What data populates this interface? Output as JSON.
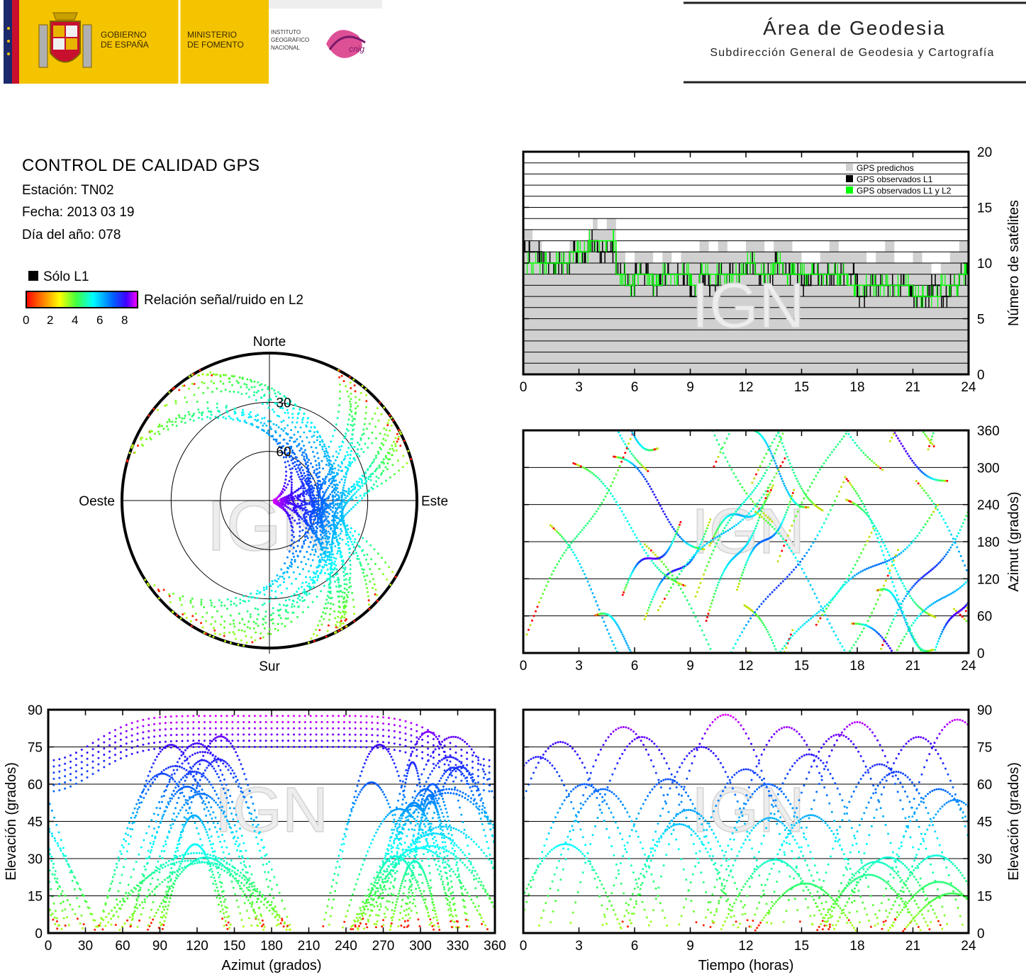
{
  "header": {
    "gobierno": [
      "GOBIERNO",
      "DE ESPAÑA"
    ],
    "ministerio": [
      "MINISTERIO",
      "DE FOMENTO"
    ],
    "instituto": [
      "INSTITUTO",
      "GEOGRÁFICO",
      "NACIONAL"
    ],
    "cnig_logo": "cnig",
    "area_title": "Área de Geodesia",
    "area_subtitle": "Subdirección General de Geodesia y Cartografía",
    "colors": {
      "yellow": "#f4c400",
      "flag_red": "#c8102e",
      "navy": "#1a2a6c",
      "cnig_magenta": "#d6247a"
    }
  },
  "report": {
    "title": "CONTROL DE CALIDAD GPS",
    "station": "Estación: TN02",
    "date": "Fecha: 2013 03 19",
    "doy": "Día del año: 078"
  },
  "legend": {
    "solo_l1": "Sólo L1",
    "snr_label": "Relación señal/ruido en L2",
    "scale_ticks": [
      "0",
      "2",
      "4",
      "6",
      "8"
    ],
    "colormap": [
      "#000000",
      "#ff0000",
      "#ff8000",
      "#ffff00",
      "#80ff00",
      "#00ff80",
      "#00ffff",
      "#0080ff",
      "#0000ff",
      "#8000ff",
      "#ff00ff"
    ]
  },
  "watermark": "IGN",
  "chart_data": [
    {
      "type": "area",
      "name": "satellites",
      "ylabel": "Número de satélites",
      "x_ticks": [
        "0",
        "3",
        "6",
        "9",
        "12",
        "15",
        "18",
        "21",
        "24"
      ],
      "y_ticks": [
        "0",
        "5",
        "10",
        "15",
        "20"
      ],
      "xlim": [
        0,
        24
      ],
      "ylim": [
        0,
        20
      ],
      "grid": true,
      "legend_position": "top-right",
      "series": [
        {
          "name": "GPS predichos",
          "color": "#d0d0d0",
          "x": [
            0,
            0.5,
            1,
            1.5,
            2,
            2.5,
            3,
            3.5,
            3.75,
            4,
            4.25,
            4.5,
            5,
            5.5,
            6,
            6.5,
            7,
            7.5,
            8,
            8.5,
            9,
            9.5,
            10,
            10.5,
            11,
            11.5,
            12,
            12.5,
            13,
            13.5,
            14,
            14.5,
            15,
            15.5,
            16,
            16.5,
            17,
            17.5,
            18,
            18.5,
            19,
            19.5,
            20,
            20.5,
            21,
            21.5,
            22,
            22.5,
            23,
            23.5,
            24
          ],
          "y": [
            13,
            12,
            11,
            11,
            11,
            12,
            12,
            13,
            14,
            13,
            13,
            14,
            11,
            10,
            11,
            11,
            10,
            11,
            10,
            11,
            11,
            12,
            11,
            12,
            11,
            11,
            12,
            12,
            11,
            12,
            12,
            11,
            10,
            10,
            11,
            12,
            11,
            11,
            11,
            10,
            11,
            12,
            10,
            10,
            11,
            10,
            9,
            10,
            11,
            12,
            13
          ]
        },
        {
          "name": "GPS observados L1",
          "color": "#000000",
          "x": [
            0,
            0.5,
            1,
            1.5,
            2,
            2.5,
            3,
            3.5,
            4,
            4.5,
            5,
            5.5,
            6,
            6.5,
            7,
            7.5,
            8,
            8.5,
            9,
            9.5,
            10,
            10.5,
            11,
            11.5,
            12,
            12.5,
            13,
            13.5,
            14,
            14.5,
            15,
            15.5,
            16,
            16.5,
            17,
            17.5,
            18,
            18.5,
            19,
            19.5,
            20,
            20.5,
            21,
            21.5,
            22,
            22.5,
            23,
            23.5,
            24
          ],
          "y": [
            11,
            11,
            10,
            10,
            10,
            11,
            11,
            12,
            11,
            11,
            9,
            8,
            9,
            9,
            8,
            9,
            9,
            9,
            7,
            9,
            8,
            9,
            9,
            9,
            10,
            9,
            9,
            10,
            9,
            9,
            8,
            9,
            9,
            9,
            9,
            9,
            7,
            8,
            8,
            8,
            8,
            8,
            7,
            7,
            8,
            7,
            8,
            9,
            9
          ]
        },
        {
          "name": "GPS observados L1 y L2",
          "color": "#00ff00",
          "x": [
            0,
            0.5,
            1,
            1.5,
            2,
            2.5,
            3,
            3.5,
            4,
            4.5,
            5,
            5.5,
            6,
            6.5,
            7,
            7.5,
            8,
            8.5,
            9,
            9.5,
            10,
            10.5,
            11,
            11.5,
            12,
            12.5,
            13,
            13.5,
            14,
            14.5,
            15,
            15.5,
            16,
            16.5,
            17,
            17.5,
            18,
            18.5,
            19,
            19.5,
            20,
            20.5,
            21,
            21.5,
            22,
            22.5,
            23,
            23.5,
            24
          ],
          "y": [
            10,
            10,
            10,
            10,
            10,
            11,
            11,
            12,
            12,
            12,
            9,
            8,
            9,
            9,
            8,
            9,
            9,
            9,
            8,
            9,
            9,
            9,
            9,
            9,
            10,
            9,
            9,
            10,
            9,
            9,
            9,
            9,
            9,
            9,
            9,
            8,
            8,
            8,
            8,
            8,
            8,
            8,
            7,
            7,
            7,
            8,
            8,
            9,
            9
          ]
        }
      ]
    },
    {
      "type": "scatter",
      "name": "azimuth_time",
      "ylabel": "Azimut (grados)",
      "x_ticks": [
        "0",
        "3",
        "6",
        "9",
        "12",
        "15",
        "18",
        "21",
        "24"
      ],
      "y_ticks": [
        "0",
        "60",
        "120",
        "180",
        "240",
        "300",
        "360"
      ],
      "xlim": [
        0,
        24
      ],
      "ylim": [
        0,
        360
      ],
      "grid": true
    },
    {
      "type": "scatter",
      "name": "polar_skyplot",
      "labels": {
        "north": "Norte",
        "south": "Sur",
        "west": "Oeste",
        "east": "Este"
      },
      "ring_labels": [
        "30",
        "60"
      ],
      "elevation_rings": [
        0,
        30,
        60
      ]
    },
    {
      "type": "scatter",
      "name": "elevation_azimuth",
      "xlabel": "Azimut (grados)",
      "ylabel": "Elevación (grados)",
      "x_ticks": [
        "0",
        "30",
        "60",
        "90",
        "120",
        "150",
        "180",
        "210",
        "240",
        "270",
        "300",
        "330",
        "360"
      ],
      "y_ticks": [
        "0",
        "15",
        "30",
        "45",
        "60",
        "75",
        "90"
      ],
      "xlim": [
        0,
        360
      ],
      "ylim": [
        0,
        90
      ],
      "grid": true
    },
    {
      "type": "scatter",
      "name": "elevation_time",
      "xlabel": "Tiempo (horas)",
      "ylabel": "Elevación (grados)",
      "x_ticks": [
        "0",
        "3",
        "6",
        "9",
        "12",
        "15",
        "18",
        "21",
        "24"
      ],
      "y_ticks": [
        "0",
        "15",
        "30",
        "45",
        "60",
        "75",
        "90"
      ],
      "xlim": [
        0,
        24
      ],
      "ylim": [
        0,
        90
      ],
      "grid": true,
      "peaks": [
        {
          "t": 0.8,
          "el": 71
        },
        {
          "t": 2.0,
          "el": 77
        },
        {
          "t": 3.3,
          "el": 60
        },
        {
          "t": 4.3,
          "el": 58
        },
        {
          "t": 5.4,
          "el": 83
        },
        {
          "t": 6.4,
          "el": 79
        },
        {
          "t": 7.8,
          "el": 62
        },
        {
          "t": 9.6,
          "el": 75
        },
        {
          "t": 10.9,
          "el": 88
        },
        {
          "t": 12.0,
          "el": 66
        },
        {
          "t": 13.2,
          "el": 60
        },
        {
          "t": 14.2,
          "el": 83
        },
        {
          "t": 15.4,
          "el": 72
        },
        {
          "t": 17.0,
          "el": 80
        },
        {
          "t": 18.0,
          "el": 85
        },
        {
          "t": 19.2,
          "el": 68
        },
        {
          "t": 20.1,
          "el": 65
        },
        {
          "t": 21.3,
          "el": 79
        },
        {
          "t": 22.4,
          "el": 58
        },
        {
          "t": 23.4,
          "el": 86
        }
      ]
    }
  ]
}
